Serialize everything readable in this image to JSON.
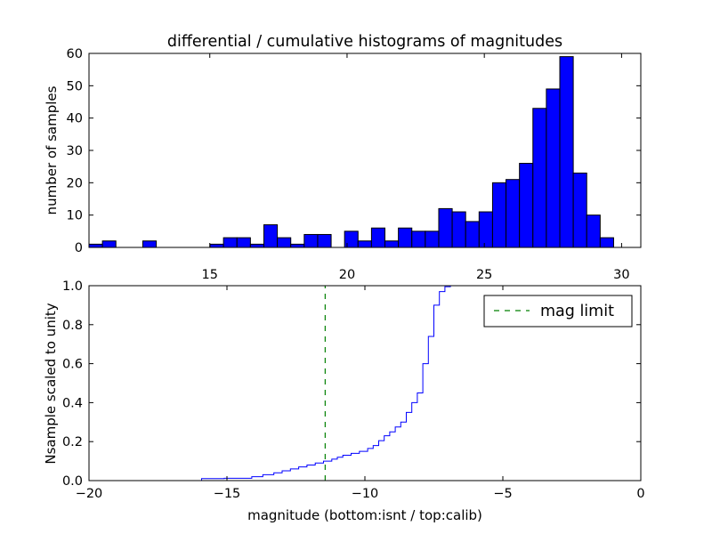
{
  "figure": {
    "title": "differential / cumulative histograms of magnitudes",
    "background": "#ffffff"
  },
  "chart_data": [
    {
      "type": "bar",
      "subtype": "histogram",
      "title": "differential / cumulative histograms of magnitudes",
      "xlabel": "",
      "ylabel": "number of samples",
      "xlim": [
        10.6,
        30.7
      ],
      "ylim": [
        0,
        60
      ],
      "xticks": [
        15,
        20,
        25,
        30
      ],
      "yticks": [
        0,
        10,
        20,
        30,
        40,
        50,
        60
      ],
      "xtick_position": "top",
      "grid": false,
      "bar_color": "#0000ff",
      "edge_color": "#000000",
      "bin_width": 0.49,
      "bins_x": [
        10.6,
        11.09,
        11.58,
        12.07,
        12.56,
        13.05,
        13.54,
        14.03,
        14.52,
        15.01,
        15.5,
        15.99,
        16.48,
        16.97,
        17.46,
        17.95,
        18.44,
        18.93,
        19.42,
        19.91,
        20.4,
        20.89,
        21.38,
        21.87,
        22.36,
        22.85,
        23.34,
        23.83,
        24.32,
        24.81,
        25.3,
        25.79,
        26.28,
        26.77,
        27.26,
        27.75,
        28.24,
        28.73,
        29.22
      ],
      "counts": [
        1,
        2,
        0,
        0,
        2,
        0,
        0,
        0,
        0,
        1,
        3,
        3,
        1,
        7,
        3,
        1,
        4,
        4,
        0,
        5,
        2,
        6,
        2,
        6,
        5,
        5,
        12,
        11,
        8,
        11,
        20,
        21,
        26,
        43,
        49,
        59,
        23,
        10,
        3
      ]
    },
    {
      "type": "line",
      "subtype": "cumulative-step",
      "title": "",
      "xlabel": "magnitude (bottom:isnt / top:calib)",
      "ylabel": "Nsample scaled to unity",
      "xlim": [
        -20,
        0
      ],
      "ylim": [
        0.0,
        1.0
      ],
      "xticks": [
        -20,
        -15,
        -10,
        -5,
        0
      ],
      "xtick_labels": [
        "−20",
        "−15",
        "−10",
        "−5",
        "0"
      ],
      "yticks": [
        0.0,
        0.2,
        0.4,
        0.6,
        0.8,
        1.0
      ],
      "ytick_labels": [
        "0.0",
        "0.2",
        "0.4",
        "0.6",
        "0.8",
        "1.0"
      ],
      "grid": false,
      "legend_placement": "top-right",
      "series": [
        {
          "name": "",
          "color": "#0000ff",
          "style": "steps",
          "x": [
            -20.0,
            -15.92,
            -15.1,
            -14.1,
            -13.7,
            -13.3,
            -13.0,
            -12.7,
            -12.4,
            -12.1,
            -11.8,
            -11.5,
            -11.2,
            -11.0,
            -10.8,
            -10.5,
            -10.2,
            -9.9,
            -9.7,
            -9.5,
            -9.3,
            -9.1,
            -8.9,
            -8.7,
            -8.5,
            -8.3,
            -8.1,
            -7.9,
            -7.7,
            -7.5,
            -7.3,
            -7.1,
            -6.9,
            -6.7
          ],
          "y": [
            0.0,
            0.01,
            0.012,
            0.02,
            0.03,
            0.04,
            0.05,
            0.06,
            0.07,
            0.08,
            0.09,
            0.1,
            0.11,
            0.12,
            0.13,
            0.14,
            0.15,
            0.165,
            0.18,
            0.205,
            0.23,
            0.25,
            0.275,
            0.3,
            0.35,
            0.4,
            0.45,
            0.6,
            0.74,
            0.9,
            0.97,
            0.995,
            1.0,
            1.0
          ]
        },
        {
          "name": "mag limit",
          "color": "#008000",
          "style": "dashed-vertical",
          "x": [
            -11.44,
            -11.44
          ],
          "y": [
            0.0,
            1.0
          ]
        }
      ]
    }
  ]
}
